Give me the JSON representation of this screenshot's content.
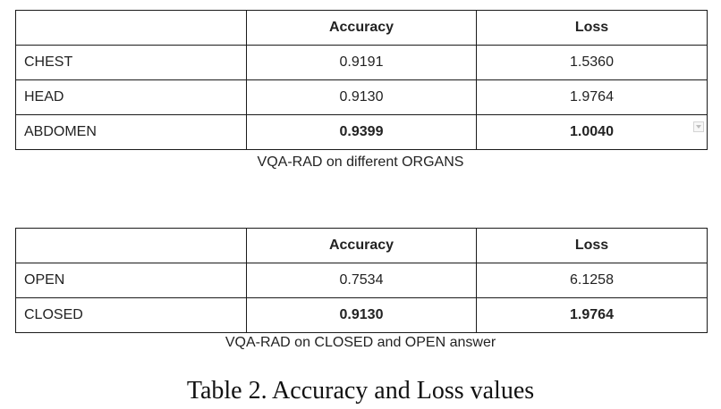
{
  "table1": {
    "headers": [
      "",
      "Accuracy",
      "Loss"
    ],
    "rows": [
      {
        "label": "CHEST",
        "accuracy": "0.9191",
        "loss": "1.5360"
      },
      {
        "label": "HEAD",
        "accuracy": "0.9130",
        "loss": "1.9764"
      },
      {
        "label": "ABDOMEN",
        "accuracy": "0.9399",
        "loss": "1.0040"
      }
    ],
    "caption": "VQA-RAD on different ORGANS"
  },
  "table2": {
    "headers": [
      "",
      "Accuracy",
      "Loss"
    ],
    "rows": [
      {
        "label": "OPEN",
        "accuracy": "0.7534",
        "loss": "6.1258"
      },
      {
        "label": "CLOSED",
        "accuracy": "0.9130",
        "loss": "1.9764"
      }
    ],
    "caption": "VQA-RAD on CLOSED and OPEN answer"
  },
  "figure_title": "Table 2. Accuracy and Loss values",
  "icons": {
    "cell_dropdown": "dropdown-arrow-icon"
  }
}
